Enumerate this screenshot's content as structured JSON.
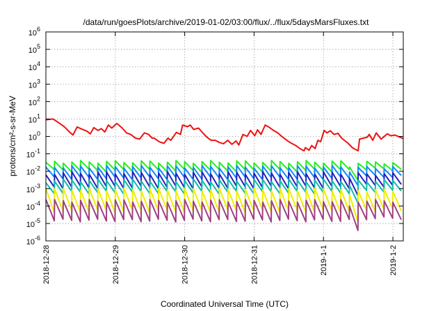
{
  "chart_data": {
    "type": "line",
    "title": "/data/run/goesPlots/archive/2019-01-02/03:00/flux/../flux/5daysMarsFluxes.txt",
    "xlabel": "Coordinated Universal Time (UTC)",
    "ylabel": "protons/cm²-s-sr-MeV",
    "yscale": "log",
    "ylim": [
      1e-06,
      1000000.0
    ],
    "xlim": [
      0,
      5.15
    ],
    "x_ticks": [
      {
        "x": 0,
        "label": "2018-12-28"
      },
      {
        "x": 1,
        "label": "2018-12-29"
      },
      {
        "x": 2,
        "label": "2018-12-30"
      },
      {
        "x": 3,
        "label": "2018-12-31"
      },
      {
        "x": 4,
        "label": "2019-1-1"
      },
      {
        "x": 5,
        "label": "2019-1-2"
      }
    ],
    "y_ticks": [
      {
        "value": 1e-06,
        "base": "10",
        "exp": "-6"
      },
      {
        "value": 1e-05,
        "base": "10",
        "exp": "-5"
      },
      {
        "value": 0.0001,
        "base": "10",
        "exp": "-4"
      },
      {
        "value": 0.001,
        "base": "10",
        "exp": "-3"
      },
      {
        "value": 0.01,
        "base": "10",
        "exp": "-2"
      },
      {
        "value": 0.1,
        "base": "10",
        "exp": "-1"
      },
      {
        "value": 1,
        "base": "10",
        "exp": "0"
      },
      {
        "value": 10,
        "base": "10",
        "exp": "1"
      },
      {
        "value": 100,
        "base": "10",
        "exp": "2"
      },
      {
        "value": 1000,
        "base": "10",
        "exp": "3"
      },
      {
        "value": 10000,
        "base": "10",
        "exp": "4"
      },
      {
        "value": 100000,
        "base": "10",
        "exp": "5"
      },
      {
        "value": 1000000,
        "base": "10",
        "exp": "6"
      }
    ],
    "grid": true,
    "legend": "none",
    "series": [
      {
        "color": "#ee1111",
        "points": [
          [
            0,
            9
          ],
          [
            0.1,
            10
          ],
          [
            0.14,
            8
          ],
          [
            0.2,
            5.5
          ],
          [
            0.27,
            3.5
          ],
          [
            0.34,
            1.8
          ],
          [
            0.39,
            1.2
          ],
          [
            0.45,
            3.5
          ],
          [
            0.51,
            2.7
          ],
          [
            0.59,
            2
          ],
          [
            0.64,
            1.4
          ],
          [
            0.69,
            3.2
          ],
          [
            0.75,
            2.2
          ],
          [
            0.8,
            2.8
          ],
          [
            0.85,
            1.8
          ],
          [
            0.9,
            4.5
          ],
          [
            0.95,
            3
          ],
          [
            1.02,
            5.5
          ],
          [
            1.05,
            4.5
          ],
          [
            1.1,
            3
          ],
          [
            1.16,
            1.6
          ],
          [
            1.22,
            1.3
          ],
          [
            1.29,
            0.8
          ],
          [
            1.35,
            0.7
          ],
          [
            1.42,
            1.6
          ],
          [
            1.48,
            1.3
          ],
          [
            1.53,
            0.8
          ],
          [
            1.56,
            0.8
          ],
          [
            1.63,
            0.5
          ],
          [
            1.7,
            0.4
          ],
          [
            1.76,
            0.8
          ],
          [
            1.8,
            0.6
          ],
          [
            1.88,
            1.7
          ],
          [
            1.94,
            1.3
          ],
          [
            1.97,
            4.5
          ],
          [
            2.04,
            3.6
          ],
          [
            2.08,
            4.5
          ],
          [
            2.13,
            2.5
          ],
          [
            2.2,
            3
          ],
          [
            2.26,
            1.6
          ],
          [
            2.32,
            0.9
          ],
          [
            2.38,
            0.6
          ],
          [
            2.44,
            0.6
          ],
          [
            2.5,
            0.45
          ],
          [
            2.56,
            0.38
          ],
          [
            2.62,
            0.6
          ],
          [
            2.68,
            0.35
          ],
          [
            2.74,
            0.55
          ],
          [
            2.78,
            0.32
          ],
          [
            2.84,
            1.3
          ],
          [
            2.9,
            1
          ],
          [
            2.95,
            2.2
          ],
          [
            3.01,
            1.1
          ],
          [
            3.05,
            2.4
          ],
          [
            3.1,
            1.3
          ],
          [
            3.16,
            4.5
          ],
          [
            3.22,
            3.3
          ],
          [
            3.28,
            2.2
          ],
          [
            3.34,
            1.6
          ],
          [
            3.4,
            1
          ],
          [
            3.45,
            0.7
          ],
          [
            3.5,
            0.5
          ],
          [
            3.55,
            0.38
          ],
          [
            3.6,
            0.3
          ],
          [
            3.66,
            0.2
          ],
          [
            3.72,
            0.15
          ],
          [
            3.74,
            0.23
          ],
          [
            3.79,
            0.16
          ],
          [
            3.83,
            0.3
          ],
          [
            3.88,
            0.2
          ],
          [
            3.92,
            0.6
          ],
          [
            3.96,
            0.5
          ],
          [
            4.01,
            2.2
          ],
          [
            4.05,
            1.6
          ],
          [
            4.1,
            2.1
          ],
          [
            4.15,
            1.3
          ],
          [
            4.21,
            1.5
          ],
          [
            4.26,
            0.8
          ],
          [
            4.3,
            0.6
          ],
          [
            4.35,
            0.42
          ],
          [
            4.42,
            0.22
          ],
          [
            4.5,
            0.15
          ],
          [
            4.52,
            0.7
          ],
          [
            4.58,
            0.8
          ],
          [
            4.63,
            0.9
          ],
          [
            4.66,
            1.3
          ],
          [
            4.71,
            0.6
          ],
          [
            4.76,
            1.6
          ],
          [
            4.83,
            0.7
          ],
          [
            4.92,
            1.4
          ],
          [
            4.97,
            1.1
          ],
          [
            5.03,
            1.2
          ],
          [
            5.1,
            0.9
          ],
          [
            5.15,
            0.75
          ]
        ]
      },
      {
        "color": "#22ee22",
        "pattern": {
          "tooth_width": 0.125,
          "peak": 0.035,
          "trough": 0.011,
          "start_peak": 0.028,
          "gap_from": 4.27,
          "gap_to": 4.38,
          "gap_low": 0.003,
          "end_peak": 0.032,
          "end_trough": 0.013
        }
      },
      {
        "color": "#1188ff",
        "pattern": {
          "tooth_width": 0.125,
          "peak": 0.018,
          "trough": 0.004,
          "start_peak": 0.015,
          "gap_from": 4.27,
          "gap_to": 4.38,
          "gap_low": 0.0015,
          "end_peak": 0.016,
          "end_trough": 0.005
        }
      },
      {
        "color": "#2222bb",
        "pattern": {
          "tooth_width": 0.125,
          "peak": 0.008,
          "trough": 0.0012,
          "start_peak": 0.006,
          "gap_from": 4.27,
          "gap_to": 4.38,
          "gap_low": 0.0004,
          "end_peak": 0.007,
          "end_trough": 0.0015
        }
      },
      {
        "color": "#11bbaa",
        "pattern": {
          "tooth_width": 0.125,
          "peak": 0.003,
          "trough": 0.0006,
          "start_peak": 0.0025,
          "gap_from": 4.27,
          "gap_to": 4.38,
          "gap_low": 0.00015,
          "end_peak": 0.0028,
          "end_trough": 0.0007
        }
      },
      {
        "color": "#eeee00",
        "pattern": {
          "tooth_width": 0.125,
          "peak": 0.0009,
          "trough": 5e-05,
          "start_peak": 0.0012,
          "gap_from": 4.27,
          "gap_to": 4.38,
          "gap_low": 1.2e-05,
          "end_peak": 0.0008,
          "end_trough": 6e-05
        }
      },
      {
        "color": "#a04080",
        "pattern": {
          "tooth_width": 0.125,
          "peak": 0.0002,
          "trough": 1.5e-05,
          "start_peak": 0.00025,
          "gap_from": 4.27,
          "gap_to": 4.38,
          "gap_low": 4e-06,
          "end_peak": 0.0002,
          "end_trough": 2e-05
        }
      }
    ]
  }
}
